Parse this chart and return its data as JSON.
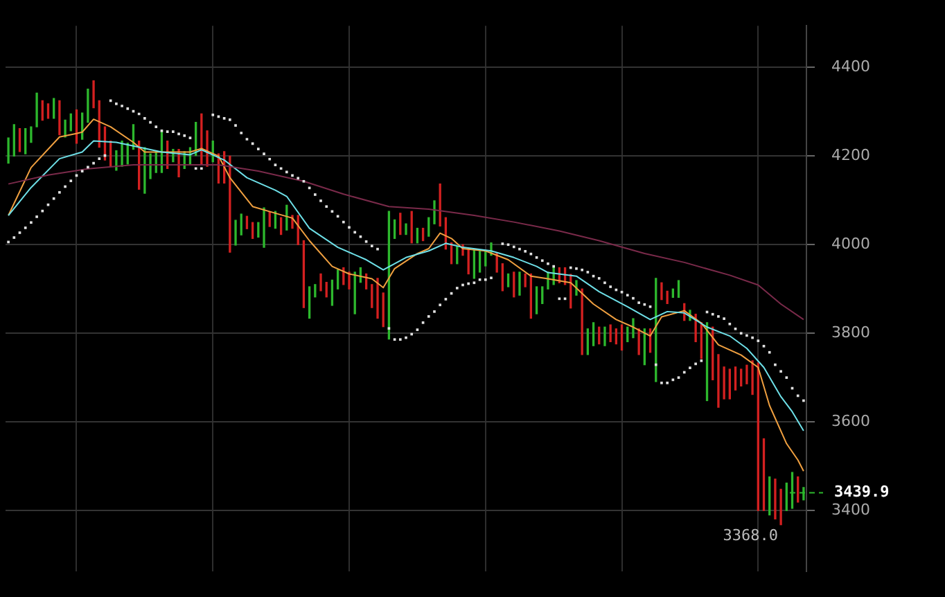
{
  "chart_data": {
    "type": "bar",
    "tick_labels": "y",
    "grid": true,
    "categories": [
      null,
      null,
      null,
      null,
      null,
      null,
      null,
      null,
      null,
      null,
      null,
      null,
      null,
      null,
      null,
      null,
      null,
      null,
      null,
      null,
      null,
      null,
      null,
      null,
      null,
      null,
      null,
      null,
      null,
      null,
      null,
      null,
      null,
      null,
      null,
      null,
      null,
      null,
      null,
      null,
      null,
      null,
      null,
      null,
      null,
      null,
      null,
      null,
      null,
      null,
      null,
      null,
      null,
      null,
      null,
      null,
      null,
      null,
      null,
      null,
      null,
      null,
      null,
      null,
      null,
      null,
      null,
      null,
      null,
      null,
      null,
      null,
      null,
      null,
      null,
      null,
      null,
      null,
      null,
      null,
      null,
      null,
      null,
      null,
      null,
      null,
      null,
      null,
      null,
      null,
      null,
      null,
      null,
      null,
      null,
      null,
      null,
      null,
      null,
      null,
      null,
      null,
      null,
      null,
      null,
      null,
      null,
      null,
      null,
      null,
      null,
      null,
      null,
      null,
      null,
      null,
      null,
      null,
      null,
      null,
      null,
      null,
      null,
      null,
      null,
      null,
      null,
      null,
      null,
      null,
      null,
      null,
      null,
      null,
      null,
      null,
      null,
      null,
      null,
      null,
      null
    ],
    "ylim": [
      3263,
      4494
    ],
    "yticks": [
      3400,
      3600,
      3800,
      4000,
      4200,
      4400
    ],
    "series": [
      {
        "type": "bar",
        "base": [
          4184,
          4200,
          4210,
          4205,
          4231,
          4266,
          4281,
          4285,
          4285,
          4248,
          4243,
          4257,
          4229,
          4238,
          4276,
          4309,
          4220,
          4191,
          4177,
          4168,
          4177,
          4182,
          4215,
          4125,
          4116,
          4149,
          4163,
          4163,
          4172,
          4187,
          4153,
          4172,
          4182,
          4201,
          4182,
          4177,
          4187,
          4139,
          4139,
          3983,
          3999,
          4022,
          4036,
          4014,
          4017,
          3994,
          4041,
          4037,
          4023,
          4033,
          4037,
          4000,
          3858,
          3834,
          3882,
          3896,
          3882,
          3863,
          3900,
          3910,
          3900,
          3844,
          3915,
          3900,
          3858,
          3834,
          3815,
          3787,
          4014,
          4023,
          4023,
          4004,
          4004,
          4009,
          4019,
          4047,
          4042,
          3990,
          3957,
          3957,
          3976,
          3934,
          3924,
          3938,
          3952,
          3976,
          3938,
          3896,
          3905,
          3882,
          3886,
          3905,
          3834,
          3844,
          3867,
          3900,
          3910,
          3914,
          3910,
          3857,
          3886,
          3752,
          3752,
          3772,
          3776,
          3772,
          3781,
          3776,
          3762,
          3781,
          3790,
          3752,
          3729,
          3757,
          3691,
          3876,
          3867,
          3881,
          3881,
          3829,
          3829,
          3781,
          3743,
          3648,
          3695,
          3633,
          3652,
          3652,
          3672,
          3681,
          3686,
          3662,
          3400,
          3400,
          3390,
          3381,
          3368,
          3400,
          3405,
          3419,
          3424
        ],
        "values": [
          57,
          71,
          52,
          57,
          35,
          76,
          44,
          33,
          45,
          77,
          38,
          38,
          75,
          59,
          75,
          61,
          105,
          75,
          57,
          44,
          57,
          47,
          56,
          109,
          103,
          56,
          47,
          94,
          62,
          28,
          62,
          38,
          37,
          75,
          113,
          80,
          47,
          66,
          71,
          217,
          56,
          47,
          28,
          36,
          33,
          89,
          33,
          38,
          38,
          56,
          29,
          66,
          151,
          71,
          28,
          38,
          33,
          57,
          43,
          38,
          38,
          94,
          33,
          34,
          52,
          90,
          76,
          288,
          42,
          48,
          24,
          71,
          33,
          28,
          42,
          52,
          95,
          71,
          47,
          38,
          24,
          56,
          66,
          47,
          33,
          28,
          43,
          61,
          29,
          56,
          52,
          29,
          100,
          61,
          38,
          38,
          38,
          34,
          38,
          76,
          33,
          148,
          58,
          52,
          38,
          42,
          38,
          34,
          57,
          33,
          43,
          58,
          81,
          53,
          233,
          38,
          28,
          19,
          38,
          38,
          23,
          62,
          81,
          176,
          119,
          119,
          72,
          67,
          52,
          38,
          42,
          76,
          333,
          162,
          86,
          90,
          80,
          62,
          81,
          57,
          28
        ],
        "colors": [
          "#2db82d",
          "#2db82d",
          "#d42020",
          "#2db82d",
          "#2db82d",
          "#2db82d",
          "#d42020",
          "#d42020",
          "#2db82d",
          "#d42020",
          "#2db82d",
          "#2db82d",
          "#d42020",
          "#2db82d",
          "#2db82d",
          "#d42020",
          "#d42020",
          "#d42020",
          "#d42020",
          "#2db82d",
          "#2db82d",
          "#2db82d",
          "#2db82d",
          "#d42020",
          "#2db82d",
          "#2db82d",
          "#2db82d",
          "#2db82d",
          "#d42020",
          "#2db82d",
          "#d42020",
          "#2db82d",
          "#2db82d",
          "#2db82d",
          "#d42020",
          "#d42020",
          "#2db82d",
          "#d42020",
          "#d42020",
          "#d42020",
          "#2db82d",
          "#2db82d",
          "#d42020",
          "#d42020",
          "#2db82d",
          "#2db82d",
          "#d42020",
          "#2db82d",
          "#d42020",
          "#2db82d",
          "#d42020",
          "#d42020",
          "#d42020",
          "#2db82d",
          "#2db82d",
          "#d42020",
          "#d42020",
          "#2db82d",
          "#2db82d",
          "#d42020",
          "#d42020",
          "#2db82d",
          "#2db82d",
          "#d42020",
          "#d42020",
          "#d42020",
          "#d42020",
          "#2db82d",
          "#2db82d",
          "#d42020",
          "#2db82d",
          "#d42020",
          "#2db82d",
          "#d42020",
          "#2db82d",
          "#2db82d",
          "#d42020",
          "#d42020",
          "#d42020",
          "#2db82d",
          "#d42020",
          "#d42020",
          "#2db82d",
          "#2db82d",
          "#2db82d",
          "#2db82d",
          "#d42020",
          "#d42020",
          "#2db82d",
          "#d42020",
          "#2db82d",
          "#d42020",
          "#d42020",
          "#2db82d",
          "#2db82d",
          "#2db82d",
          "#2db82d",
          "#d42020",
          "#d42020",
          "#d42020",
          "#2db82d",
          "#d42020",
          "#2db82d",
          "#2db82d",
          "#d42020",
          "#2db82d",
          "#d42020",
          "#d42020",
          "#d42020",
          "#2db82d",
          "#2db82d",
          "#d42020",
          "#2db82d",
          "#d42020",
          "#2db82d",
          "#d42020",
          "#d42020",
          "#2db82d",
          "#2db82d",
          "#d42020",
          "#2db82d",
          "#d42020",
          "#d42020",
          "#2db82d",
          "#d42020",
          "#d42020",
          "#d42020",
          "#d42020",
          "#d42020",
          "#d42020",
          "#d42020",
          "#d42020",
          "#d42020",
          "#d42020",
          "#2db82d",
          "#d42020",
          "#d42020",
          "#2db82d",
          "#2db82d",
          "#d42020",
          "#2db82d"
        ]
      },
      {
        "type": "line",
        "color": "#7a2a4a",
        "values": [
          4137,
          null,
          null,
          null,
          null,
          null,
          null,
          4157,
          null,
          null,
          null,
          null,
          null,
          null,
          4171,
          null,
          null,
          null,
          null,
          null,
          null,
          null,
          4180,
          null,
          null,
          null,
          null,
          null,
          null,
          4180,
          null,
          null,
          null,
          null,
          null,
          null,
          null,
          4180,
          null,
          null,
          null,
          null,
          null,
          null,
          4166,
          null,
          null,
          null,
          null,
          null,
          null,
          null,
          4143,
          null,
          null,
          null,
          null,
          null,
          null,
          4114,
          null,
          null,
          null,
          null,
          null,
          null,
          null,
          4086,
          null,
          null,
          null,
          null,
          null,
          null,
          4080,
          null,
          null,
          null,
          null,
          null,
          null,
          null,
          4066,
          null,
          null,
          null,
          null,
          null,
          null,
          4051,
          null,
          null,
          null,
          null,
          null,
          null,
          null,
          4031,
          null,
          null,
          null,
          null,
          null,
          null,
          4009,
          null,
          null,
          null,
          null,
          null,
          null,
          null,
          3980,
          null,
          null,
          null,
          null,
          null,
          null,
          3960,
          null,
          null,
          null,
          null,
          null,
          null,
          null,
          3931,
          null,
          null,
          null,
          null,
          3909,
          null,
          null,
          null,
          3866,
          null,
          null,
          null,
          3831
        ]
      },
      {
        "type": "line",
        "color": "#6ee0e8",
        "values": [
          4066,
          null,
          null,
          null,
          4129,
          null,
          null,
          null,
          null,
          4194,
          null,
          null,
          null,
          4209,
          null,
          4234,
          null,
          null,
          null,
          4231,
          null,
          null,
          null,
          4220,
          null,
          null,
          null,
          4209,
          null,
          null,
          null,
          null,
          4203,
          null,
          4214,
          null,
          null,
          null,
          4191,
          null,
          null,
          null,
          4151,
          null,
          null,
          null,
          null,
          4123,
          null,
          4109,
          null,
          null,
          null,
          4037,
          null,
          null,
          null,
          null,
          3994,
          null,
          null,
          null,
          null,
          3966,
          null,
          null,
          3943,
          null,
          null,
          null,
          3971,
          null,
          null,
          null,
          3986,
          null,
          null,
          4003,
          null,
          null,
          3994,
          null,
          null,
          null,
          null,
          3986,
          null,
          null,
          null,
          3971,
          null,
          null,
          null,
          3951,
          null,
          3937,
          null,
          null,
          null,
          null,
          3929,
          null,
          null,
          null,
          3894,
          null,
          null,
          null,
          null,
          3860,
          null,
          null,
          null,
          3831,
          null,
          null,
          3849,
          null,
          null,
          3846,
          null,
          null,
          null,
          3814,
          null,
          null,
          null,
          3794,
          null,
          null,
          3766,
          null,
          null,
          3723,
          null,
          null,
          3657,
          null,
          3623,
          null,
          3580
        ]
      },
      {
        "type": "line",
        "color": "#f0a040",
        "values": [
          4066,
          null,
          null,
          null,
          4174,
          null,
          null,
          null,
          null,
          4243,
          null,
          null,
          4251,
          4254,
          null,
          4283,
          null,
          null,
          4266,
          null,
          null,
          null,
          4231,
          null,
          4209,
          null,
          null,
          null,
          4209,
          null,
          null,
          null,
          4209,
          null,
          4217,
          null,
          null,
          4200,
          null,
          4151,
          null,
          null,
          null,
          4086,
          null,
          null,
          null,
          4071,
          null,
          null,
          4060,
          null,
          null,
          4009,
          null,
          null,
          null,
          3951,
          null,
          null,
          3934,
          null,
          null,
          null,
          3923,
          null,
          3903,
          null,
          3946,
          null,
          null,
          null,
          3980,
          null,
          3991,
          null,
          4026,
          null,
          4014,
          null,
          3991,
          null,
          null,
          null,
          3986,
          null,
          null,
          null,
          3966,
          null,
          null,
          null,
          3929,
          null,
          null,
          3923,
          null,
          null,
          null,
          3914,
          null,
          null,
          null,
          3866,
          null,
          null,
          null,
          3831,
          null,
          null,
          3814,
          null,
          null,
          3794,
          null,
          3837,
          null,
          null,
          null,
          3851,
          null,
          null,
          3823,
          null,
          null,
          3774,
          null,
          null,
          null,
          3751,
          null,
          null,
          3723,
          null,
          3637,
          null,
          null,
          3551,
          null,
          3514,
          3489
        ]
      },
      {
        "type": "scatter",
        "color": "#e0e0e0",
        "marker": "square",
        "values": [
          4006,
          4016,
          4027,
          4038,
          4050,
          4063,
          4076,
          4090,
          4104,
          4118,
          4131,
          4144,
          4156,
          4166,
          4175,
          4184,
          4194,
          4201,
          4325,
          4318,
          4313,
          4307,
          4301,
          4295,
          4285,
          4276,
          4266,
          4257,
          4255,
          4255,
          4250,
          4246,
          4241,
          4172,
          4172,
          null,
          4293,
          4289,
          4285,
          4282,
          4269,
          4252,
          4238,
          4228,
          4216,
          4205,
          4193,
          4180,
          4172,
          4164,
          4156,
          4150,
          4143,
          4128,
          4113,
          4099,
          4086,
          4075,
          4064,
          4051,
          4039,
          4028,
          4018,
          4007,
          3997,
          3990,
          null,
          3811,
          3786,
          3786,
          3790,
          3798,
          3808,
          3824,
          3838,
          3849,
          3864,
          3877,
          3890,
          3902,
          3909,
          3912,
          3914,
          3921,
          3921,
          3925,
          null,
          4002,
          4000,
          3995,
          3990,
          3985,
          3979,
          3971,
          3964,
          3957,
          3951,
          3878,
          3878,
          3948,
          3946,
          3943,
          3938,
          3929,
          3924,
          3914,
          3905,
          3898,
          3893,
          3886,
          3879,
          3869,
          3865,
          3860,
          3729,
          3688,
          3688,
          3695,
          3700,
          3712,
          3722,
          3731,
          3738,
          3848,
          3843,
          3838,
          3833,
          3821,
          3810,
          3800,
          3795,
          3790,
          3783,
          3771,
          3757,
          3729,
          3714,
          3700,
          3676,
          3659,
          3648
        ]
      }
    ],
    "ref_lines": [
      {
        "axis": "y",
        "value": 3439.9,
        "label": "3439.9",
        "color": "#2db82d",
        "line_style": "dashed"
      }
    ],
    "annotations": [
      "3368.0"
    ]
  }
}
